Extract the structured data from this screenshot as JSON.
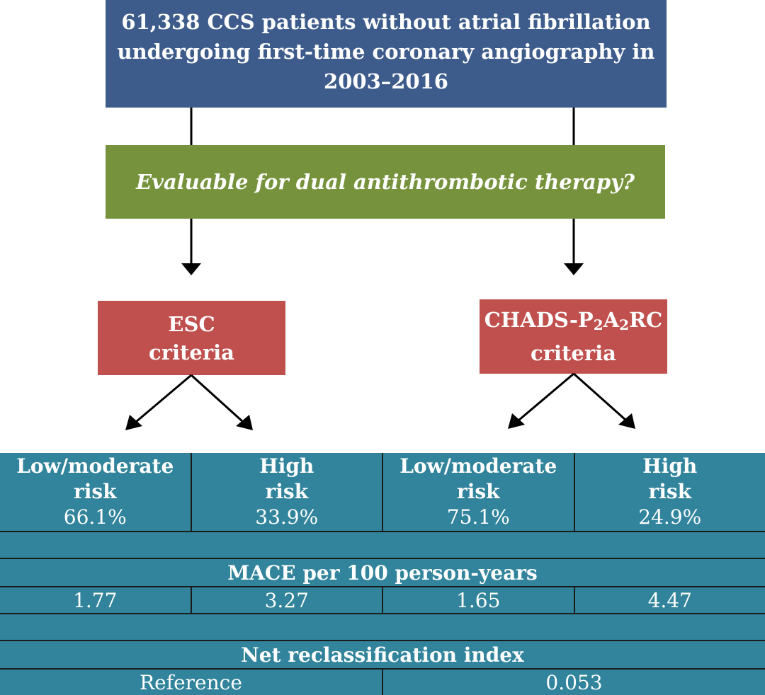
{
  "top_box": {
    "lines": [
      "61,338 CCS patients without atrial fibrillation",
      "undergoing first-time coronary angiography in",
      "2003–2016"
    ]
  },
  "question_box": {
    "text": "Evaluable for dual antithrombotic therapy?"
  },
  "esc_box": {
    "line1": "ESC",
    "line2": "criteria"
  },
  "chads_box": {
    "name_prefix": "CHADS-P",
    "sub1": "2",
    "name_mid": "A",
    "sub2": "2",
    "name_suffix": "RC",
    "line2": "criteria"
  },
  "risk_groups": [
    {
      "line1": "Low/moderate",
      "line2": "risk",
      "percent": "66.1%"
    },
    {
      "line1": "High",
      "line2": "risk",
      "percent": "33.9%"
    },
    {
      "line1": "Low/moderate",
      "line2": "risk",
      "percent": "75.1%"
    },
    {
      "line1": "High",
      "line2": "risk",
      "percent": "24.9%"
    }
  ],
  "mace": {
    "heading": "MACE per 100 person-years",
    "values": [
      "1.77",
      "3.27",
      "1.65",
      "4.47"
    ]
  },
  "nri": {
    "heading": "Net reclassification index",
    "values": [
      "Reference",
      "0.053"
    ]
  },
  "colors": {
    "top_box": "#3e5c8b",
    "question_box": "#76923c",
    "criteria_box": "#c0504d",
    "results_table": "#31849b"
  }
}
